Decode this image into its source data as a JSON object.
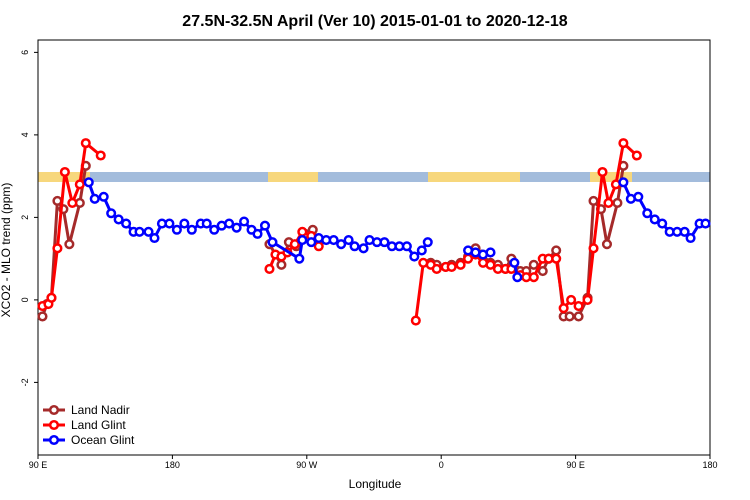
{
  "chart_data": {
    "type": "line",
    "title": "27.5N-32.5N April (Ver 10)   2015-01-01 to 2020-12-18",
    "x_label": "Longitude",
    "y_label": "XCO2 - MLO trend (ppm)",
    "xlim": [
      90,
      540
    ],
    "ylim": [
      -3.76,
      6.3
    ],
    "xticks": [
      {
        "value": 90,
        "label": "90 E"
      },
      180,
      {
        "value": 270,
        "label": "90 W"
      },
      {
        "value": 360,
        "label": "0"
      },
      {
        "value": 450,
        "label": "90 E"
      },
      {
        "value": 540,
        "label": "180"
      }
    ],
    "yticks": [
      -2,
      0,
      2,
      4,
      6
    ],
    "legend": "bottom-left",
    "series": [
      {
        "name": "Land Nadir",
        "color": "#a52a2a",
        "x": [
          93,
          96,
          99,
          103,
          107,
          111,
          118,
          122,
          180,
          245,
          253,
          258,
          263,
          269,
          274,
          278,
          310,
          353,
          357,
          363,
          367,
          373,
          378,
          383,
          387,
          393,
          398,
          403,
          407,
          413,
          417,
          422,
          428,
          432,
          437,
          442,
          446,
          452,
          458,
          462,
          467,
          471,
          478,
          482
        ],
        "values": [
          -0.4,
          -0.1,
          0.05,
          2.4,
          2.2,
          1.35,
          2.35,
          3.25,
          null,
          1.35,
          0.85,
          1.4,
          1.3,
          1.6,
          1.7,
          1.4,
          null,
          0.9,
          0.85,
          0.8,
          0.85,
          0.9,
          1.05,
          1.25,
          1.1,
          0.9,
          0.85,
          0.75,
          1.0,
          0.7,
          0.7,
          0.85,
          0.7,
          1.0,
          1.2,
          -0.4,
          -0.4,
          -0.4,
          0.05,
          2.4,
          2.2,
          1.35,
          2.35,
          3.25
        ]
      },
      {
        "name": "Land Glint",
        "color": "#ff0000",
        "x": [
          93,
          97,
          99,
          103,
          108,
          113,
          118,
          122,
          132,
          190,
          245,
          249,
          253,
          257,
          262,
          267,
          273,
          278,
          310,
          343,
          348,
          353,
          357,
          363,
          367,
          373,
          378,
          383,
          388,
          393,
          398,
          403,
          407,
          413,
          417,
          422,
          428,
          432,
          437,
          442,
          447,
          452,
          458,
          462,
          468,
          472,
          477,
          482,
          491
        ],
        "values": [
          -0.15,
          -0.1,
          0.05,
          1.25,
          3.1,
          2.35,
          2.8,
          3.8,
          3.5,
          null,
          0.75,
          1.1,
          1.05,
          1.15,
          1.35,
          1.65,
          1.55,
          1.3,
          null,
          -0.5,
          0.9,
          0.85,
          0.75,
          0.8,
          0.8,
          0.85,
          1.0,
          1.1,
          0.9,
          0.85,
          0.75,
          0.75,
          0.75,
          0.6,
          0.55,
          0.55,
          1.0,
          1.0,
          1.0,
          -0.2,
          0,
          -0.15,
          0,
          1.25,
          3.1,
          2.35,
          2.8,
          3.8,
          3.5
        ]
      },
      {
        "name": "Ocean Glint",
        "color": "#0000ff",
        "x": [
          124,
          128,
          134,
          139,
          144,
          149,
          154,
          158,
          164,
          168,
          173,
          178,
          183,
          188,
          193,
          199,
          203,
          208,
          213,
          218,
          223,
          228,
          233,
          237,
          242,
          247,
          265,
          267,
          273,
          278,
          283,
          288,
          293,
          298,
          302,
          308,
          312,
          317,
          322,
          327,
          332,
          337,
          342,
          347,
          351,
          365,
          378,
          383,
          388,
          393,
          400,
          409,
          411,
          450,
          482,
          487,
          492,
          498,
          503,
          508,
          513,
          518,
          523,
          527,
          533,
          537
        ],
        "values": [
          2.85,
          2.45,
          2.5,
          2.1,
          1.95,
          1.85,
          1.65,
          1.65,
          1.65,
          1.5,
          1.85,
          1.85,
          1.7,
          1.85,
          1.7,
          1.85,
          1.85,
          1.7,
          1.8,
          1.85,
          1.75,
          1.9,
          1.7,
          1.6,
          1.8,
          1.4,
          1.0,
          1.45,
          1.4,
          1.5,
          1.45,
          1.45,
          1.35,
          1.45,
          1.3,
          1.25,
          1.45,
          1.4,
          1.4,
          1.3,
          1.3,
          1.3,
          1.05,
          1.2,
          1.4,
          null,
          1.2,
          1.15,
          1.1,
          1.15,
          null,
          0.9,
          0.55,
          null,
          2.85,
          2.45,
          2.5,
          2.1,
          1.95,
          1.85,
          1.65,
          1.65,
          1.65,
          1.5,
          1.85,
          1.85
        ]
      }
    ]
  }
}
